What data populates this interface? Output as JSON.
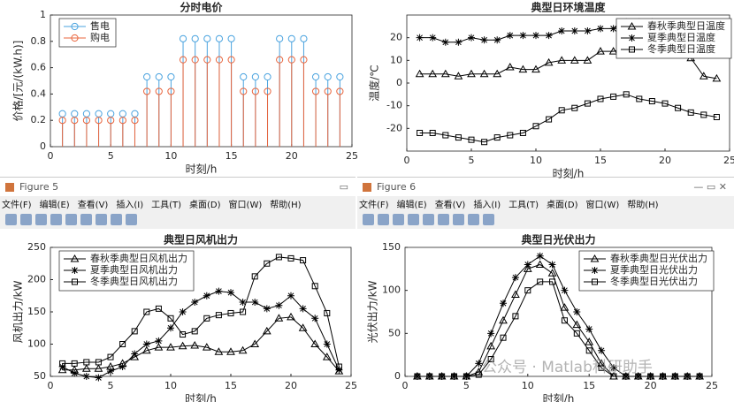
{
  "chart_data": [
    {
      "type": "stem",
      "title": "分时电价",
      "xlabel": "时刻/h",
      "ylabel": "价格/[元/(kW.h)]",
      "x": [
        1,
        2,
        3,
        4,
        5,
        6,
        7,
        8,
        9,
        10,
        11,
        12,
        13,
        14,
        15,
        16,
        17,
        18,
        19,
        20,
        21,
        22,
        23,
        24
      ],
      "series": [
        {
          "name": "售电",
          "color": "#4aa3df",
          "marker": "o",
          "values": [
            0.25,
            0.25,
            0.25,
            0.25,
            0.25,
            0.25,
            0.25,
            0.53,
            0.53,
            0.53,
            0.82,
            0.82,
            0.82,
            0.82,
            0.82,
            0.53,
            0.53,
            0.53,
            0.82,
            0.82,
            0.82,
            0.53,
            0.53,
            0.53
          ]
        },
        {
          "name": "购电",
          "color": "#e8643c",
          "marker": "o",
          "values": [
            0.2,
            0.2,
            0.2,
            0.2,
            0.2,
            0.2,
            0.2,
            0.42,
            0.42,
            0.42,
            0.66,
            0.66,
            0.66,
            0.66,
            0.66,
            0.42,
            0.42,
            0.42,
            0.66,
            0.66,
            0.66,
            0.42,
            0.42,
            0.42
          ]
        }
      ],
      "xlim": [
        0,
        25
      ],
      "xticks": [
        0,
        5,
        10,
        15,
        20,
        25
      ],
      "ylim": [
        0,
        1
      ],
      "yticks": [
        0,
        0.2,
        0.4,
        0.6,
        0.8,
        1
      ],
      "legend": "upper left"
    },
    {
      "type": "line",
      "title": "典型日环境温度",
      "xlabel": "时刻/h",
      "ylabel": "温度/℃",
      "x": [
        1,
        2,
        3,
        4,
        5,
        6,
        7,
        8,
        9,
        10,
        11,
        12,
        13,
        14,
        15,
        16,
        17,
        18,
        19,
        20,
        21,
        22,
        23,
        24
      ],
      "series": [
        {
          "name": "春秋季典型日温度",
          "color": "#000000",
          "marker": "^",
          "values": [
            4,
            4,
            4,
            3,
            4,
            4,
            4,
            7,
            6,
            6,
            9,
            10,
            10,
            10,
            14,
            14,
            15,
            15,
            16,
            13,
            13,
            11,
            3,
            2
          ]
        },
        {
          "name": "夏季典型日温度",
          "color": "#000000",
          "marker": "*",
          "values": [
            20,
            20,
            18,
            18,
            20,
            19,
            19,
            21,
            21,
            21,
            21,
            23,
            23,
            23,
            24,
            24,
            27,
            27,
            27,
            26,
            26,
            26,
            25,
            24
          ]
        },
        {
          "name": "冬季典型日温度",
          "color": "#000000",
          "marker": "s",
          "values": [
            -22,
            -22,
            -23,
            -24,
            -25,
            -26,
            -24,
            -23,
            -22,
            -19,
            -16,
            -12,
            -11,
            -9,
            -7,
            -6,
            -5,
            -7,
            -8,
            -9,
            -11,
            -13,
            -14,
            -15
          ]
        }
      ],
      "xlim": [
        0,
        25
      ],
      "xticks": [
        0,
        5,
        10,
        15,
        20,
        25
      ],
      "ylim": [
        -30,
        30
      ],
      "yticks": [
        -20,
        -10,
        0,
        10,
        20
      ],
      "legend": "upper right"
    },
    {
      "type": "line",
      "title": "典型日风机出力",
      "xlabel": "时刻/h",
      "ylabel": "风机出力/kW",
      "x": [
        1,
        2,
        3,
        4,
        5,
        6,
        7,
        8,
        9,
        10,
        11,
        12,
        13,
        14,
        15,
        16,
        17,
        18,
        19,
        20,
        21,
        22,
        23,
        24
      ],
      "series": [
        {
          "name": "春秋季典型日风机出力",
          "color": "#000000",
          "marker": "^",
          "values": [
            60,
            60,
            62,
            62,
            65,
            70,
            80,
            90,
            95,
            95,
            97,
            98,
            95,
            88,
            88,
            90,
            100,
            120,
            140,
            142,
            125,
            100,
            80,
            58
          ]
        },
        {
          "name": "夏季典型日风机出力",
          "color": "#000000",
          "marker": "*",
          "values": [
            65,
            55,
            50,
            48,
            58,
            65,
            85,
            100,
            105,
            125,
            150,
            165,
            175,
            182,
            180,
            165,
            165,
            155,
            160,
            175,
            155,
            140,
            100,
            60
          ]
        },
        {
          "name": "冬季典型日风机出力",
          "color": "#000000",
          "marker": "s",
          "values": [
            70,
            70,
            72,
            72,
            80,
            100,
            120,
            150,
            155,
            140,
            115,
            120,
            140,
            145,
            148,
            150,
            205,
            225,
            235,
            233,
            230,
            190,
            148,
            65
          ]
        }
      ],
      "xlim": [
        0,
        25
      ],
      "xticks": [
        0,
        5,
        10,
        15,
        20,
        25
      ],
      "ylim": [
        50,
        250
      ],
      "yticks": [
        50,
        100,
        150,
        200,
        250
      ],
      "legend": "upper left"
    },
    {
      "type": "line",
      "title": "典型日光伏出力",
      "xlabel": "时刻/h",
      "ylabel": "光伏出力/kW",
      "x": [
        1,
        2,
        3,
        4,
        5,
        6,
        7,
        8,
        9,
        10,
        11,
        12,
        13,
        14,
        15,
        16,
        17,
        18,
        19,
        20,
        21,
        22,
        23,
        24
      ],
      "series": [
        {
          "name": "春秋季典型日光伏出力",
          "color": "#000000",
          "marker": "^",
          "values": [
            0,
            0,
            0,
            0,
            0,
            5,
            35,
            65,
            95,
            125,
            130,
            120,
            80,
            60,
            40,
            15,
            0,
            0,
            0,
            0,
            0,
            0,
            0,
            0
          ]
        },
        {
          "name": "夏季典型日光伏出力",
          "color": "#000000",
          "marker": "*",
          "values": [
            0,
            0,
            0,
            0,
            0,
            15,
            50,
            85,
            115,
            130,
            140,
            130,
            100,
            75,
            55,
            30,
            10,
            0,
            0,
            0,
            0,
            0,
            0,
            0
          ]
        },
        {
          "name": "冬季典型日光伏出力",
          "color": "#000000",
          "marker": "s",
          "values": [
            0,
            0,
            0,
            0,
            0,
            2,
            20,
            45,
            70,
            100,
            110,
            110,
            65,
            50,
            30,
            10,
            0,
            0,
            0,
            0,
            0,
            0,
            0,
            0
          ]
        }
      ],
      "xlim": [
        0,
        25
      ],
      "xticks": [
        0,
        5,
        10,
        15,
        20,
        25
      ],
      "ylim": [
        0,
        150
      ],
      "yticks": [
        0,
        50,
        100,
        150
      ],
      "legend": "upper right"
    }
  ],
  "windows": [
    {
      "title": "Figure 5",
      "menu": [
        "文件(F)",
        "编辑(E)",
        "查看(V)",
        "插入(I)",
        "工具(T)",
        "桌面(D)",
        "窗口(W)",
        "帮助(H)"
      ]
    },
    {
      "title": "Figure 6",
      "menu": [
        "文件(F)",
        "编辑(E)",
        "查看(V)",
        "插入(I)",
        "工具(T)",
        "桌面(D)",
        "窗口(W)",
        "帮助(H)"
      ]
    }
  ],
  "watermark": "公众号 · Matlab科研助手"
}
